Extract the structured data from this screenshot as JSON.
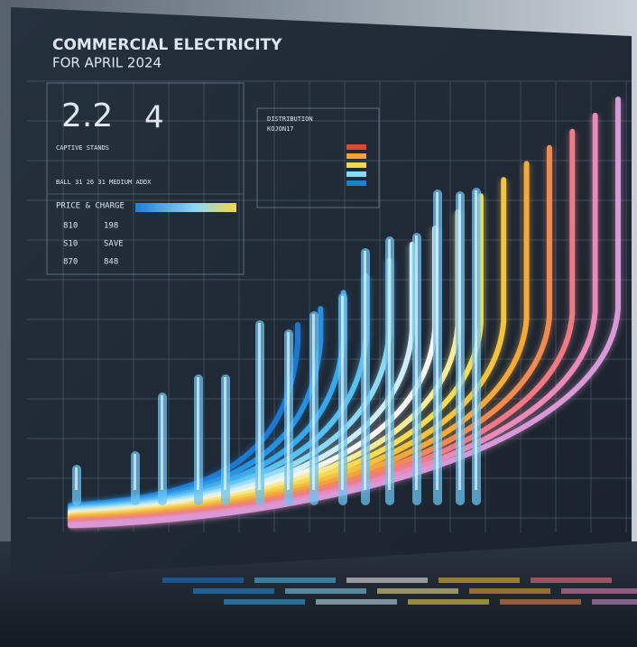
{
  "header": {
    "title": "COMMERCIAL ELECTRICITY",
    "subtitle": "FOR APRIL 2024"
  },
  "stats": {
    "primary": "2.2",
    "secondary": "4",
    "caption": "CAPTIVE STANDS",
    "note": "BALL 31 26 31 MEDIUM ADDX"
  },
  "table": {
    "title": "PRICE & CHARGE",
    "rows": [
      [
        "810",
        "198"
      ],
      [
        "S10",
        "SAVE"
      ],
      [
        "870",
        "848"
      ]
    ]
  },
  "panel": {
    "title": "DISTRIBUTION",
    "subtitle": "KOJON17"
  }
}
